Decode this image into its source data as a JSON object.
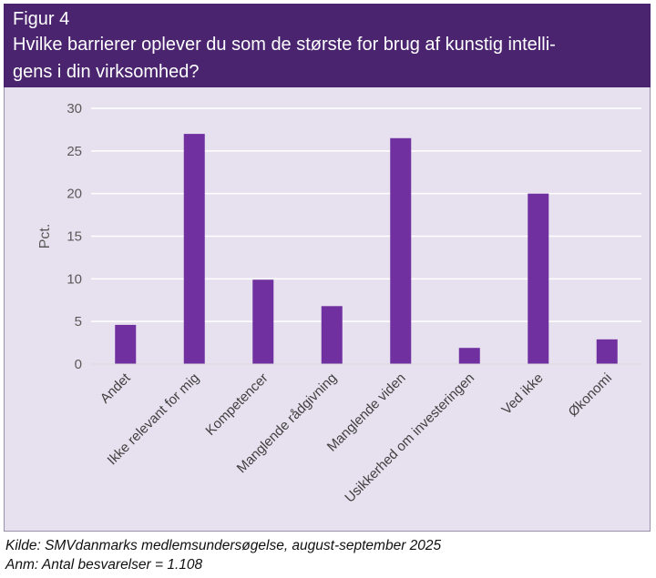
{
  "header": {
    "figure_label": "Figur 4",
    "title_line1": "Hvilke barrierer oplever du som de største for brug af kunstig intelli-",
    "title_line2": "gens i din virksomhed?"
  },
  "chart_data": {
    "type": "bar",
    "categories": [
      "Andet",
      "Ikke relevant for mig",
      "Kompetencer",
      "Manglende rådgivning",
      "Manglende viden",
      "Usikkerhed om investeringen",
      "Ved ikke",
      "Økonomi"
    ],
    "values": [
      4.6,
      27.0,
      9.9,
      6.8,
      26.5,
      1.9,
      20.0,
      2.9
    ],
    "ylabel": "Pct.",
    "ylim": [
      0,
      30
    ],
    "yticks": [
      0,
      5,
      10,
      15,
      20,
      25,
      30
    ],
    "grid": true,
    "bar_color": "#7030a0"
  },
  "footer": {
    "source": "Kilde: SMVdanmarks medlemsundersøgelse, august-september 2025",
    "note": "Anm: Antal besvarelser = 1.108"
  },
  "colors": {
    "header_bg": "#4b2470",
    "plot_bg": "#e7e1ef",
    "bar": "#7030a0",
    "gridline": "#ffffff"
  }
}
